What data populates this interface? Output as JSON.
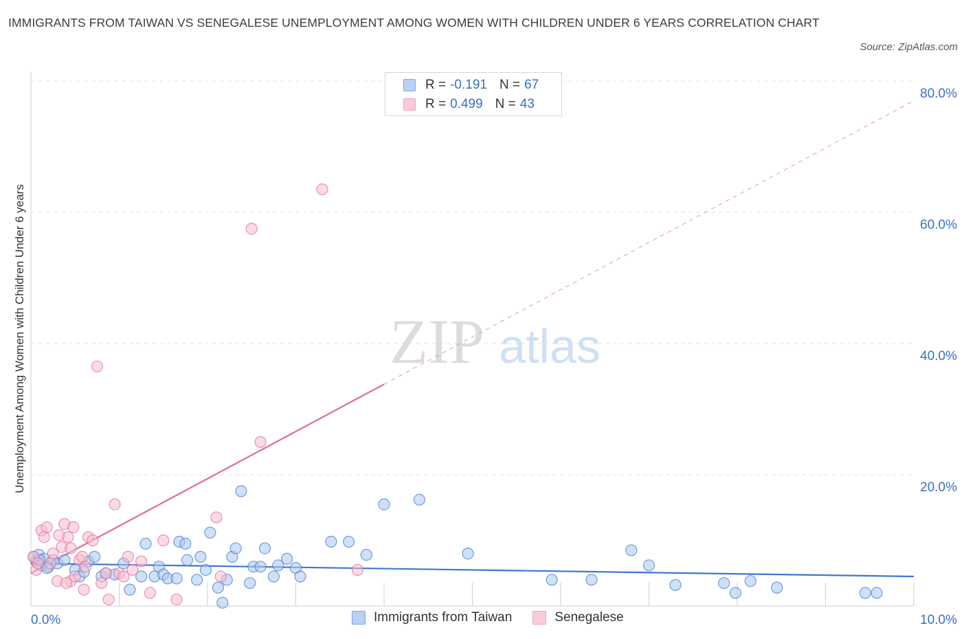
{
  "title": "IMMIGRANTS FROM TAIWAN VS SENEGALESE UNEMPLOYMENT AMONG WOMEN WITH CHILDREN UNDER 6 YEARS CORRELATION CHART",
  "source": "Source: ZipAtlas.com",
  "watermark": {
    "zip": "ZIP",
    "atlas": "atlas"
  },
  "legend_top": [
    {
      "r_label": "R =",
      "r_value": "-0.191",
      "n_label": "N =",
      "n_value": "67",
      "color": "#7aa7e8",
      "fill": "#b9d1f5"
    },
    {
      "r_label": "R =",
      "r_value": "0.499",
      "n_label": "N =",
      "n_value": "43",
      "color": "#f0a0b8",
      "fill": "#f9cbd8"
    }
  ],
  "chart_data": {
    "type": "scatter",
    "title": "IMMIGRANTS FROM TAIWAN VS SENEGALESE UNEMPLOYMENT AMONG WOMEN WITH CHILDREN UNDER 6 YEARS CORRELATION CHART",
    "xlabel": "",
    "ylabel": "Unemployment Among Women with Children Under 6 years",
    "xlim": [
      0,
      10
    ],
    "ylim": [
      0,
      80
    ],
    "x_tick_labels": [
      "0.0%",
      "10.0%"
    ],
    "y_tick_labels": [
      "20.0%",
      "40.0%",
      "60.0%",
      "80.0%"
    ],
    "y_ticks": [
      20,
      40,
      60,
      80
    ],
    "series": [
      {
        "name": "Immigrants from Taiwan",
        "color": "#3b78d0",
        "fill": "#a9c6f0",
        "trend": {
          "x0": 0,
          "y0": 6.5,
          "x1": 10,
          "y1": 4.5,
          "dashed_from": null
        },
        "points": [
          [
            0.03,
            7.5
          ],
          [
            0.06,
            6.8
          ],
          [
            0.09,
            7.8
          ],
          [
            0.12,
            6.2
          ],
          [
            0.15,
            7.2
          ],
          [
            0.2,
            6.0
          ],
          [
            0.25,
            7.0
          ],
          [
            0.3,
            6.5
          ],
          [
            0.38,
            7.0
          ],
          [
            0.5,
            5.5
          ],
          [
            0.55,
            4.5
          ],
          [
            0.6,
            5.2
          ],
          [
            0.65,
            6.8
          ],
          [
            0.72,
            7.5
          ],
          [
            0.8,
            4.5
          ],
          [
            0.85,
            5.0
          ],
          [
            0.95,
            4.8
          ],
          [
            1.05,
            6.5
          ],
          [
            1.12,
            2.5
          ],
          [
            1.25,
            4.5
          ],
          [
            1.3,
            9.5
          ],
          [
            1.4,
            4.5
          ],
          [
            1.45,
            6.0
          ],
          [
            1.5,
            4.8
          ],
          [
            1.55,
            4.2
          ],
          [
            1.65,
            4.2
          ],
          [
            1.68,
            9.8
          ],
          [
            1.75,
            9.5
          ],
          [
            1.77,
            7.0
          ],
          [
            1.88,
            4.0
          ],
          [
            1.92,
            7.5
          ],
          [
            1.98,
            5.5
          ],
          [
            2.03,
            11.2
          ],
          [
            2.12,
            2.8
          ],
          [
            2.17,
            0.5
          ],
          [
            2.22,
            4.0
          ],
          [
            2.28,
            7.5
          ],
          [
            2.32,
            8.8
          ],
          [
            2.38,
            17.5
          ],
          [
            2.48,
            3.5
          ],
          [
            2.52,
            6.0
          ],
          [
            2.6,
            6.0
          ],
          [
            2.65,
            8.8
          ],
          [
            2.75,
            4.5
          ],
          [
            2.8,
            6.2
          ],
          [
            2.9,
            7.2
          ],
          [
            3.0,
            5.8
          ],
          [
            3.05,
            4.5
          ],
          [
            3.4,
            9.8
          ],
          [
            3.6,
            9.8
          ],
          [
            3.8,
            7.8
          ],
          [
            4.0,
            15.5
          ],
          [
            4.4,
            16.2
          ],
          [
            4.95,
            8.0
          ],
          [
            5.9,
            4.0
          ],
          [
            6.35,
            4.0
          ],
          [
            6.8,
            8.5
          ],
          [
            7.0,
            6.2
          ],
          [
            7.3,
            3.2
          ],
          [
            7.85,
            3.5
          ],
          [
            7.98,
            2.0
          ],
          [
            8.15,
            3.8
          ],
          [
            8.45,
            2.8
          ],
          [
            9.45,
            2.0
          ],
          [
            9.58,
            2.0
          ],
          [
            0.1,
            7.0
          ],
          [
            0.18,
            5.8
          ]
        ]
      },
      {
        "name": "Senegalese",
        "color": "#e26a96",
        "fill": "#f6bdd0",
        "trend": {
          "x0": 0,
          "y0": 5.0,
          "x1": 10,
          "y1": 77.0,
          "dashed_from": 4.0
        },
        "points": [
          [
            0.03,
            7.5
          ],
          [
            0.06,
            5.5
          ],
          [
            0.08,
            6.5
          ],
          [
            0.12,
            11.5
          ],
          [
            0.15,
            10.5
          ],
          [
            0.18,
            12.0
          ],
          [
            0.22,
            6.5
          ],
          [
            0.25,
            8.0
          ],
          [
            0.3,
            3.8
          ],
          [
            0.32,
            10.8
          ],
          [
            0.35,
            9.0
          ],
          [
            0.38,
            12.5
          ],
          [
            0.42,
            10.5
          ],
          [
            0.45,
            3.8
          ],
          [
            0.45,
            8.8
          ],
          [
            0.48,
            12.0
          ],
          [
            0.5,
            4.5
          ],
          [
            0.55,
            7.0
          ],
          [
            0.58,
            7.5
          ],
          [
            0.6,
            2.5
          ],
          [
            0.62,
            6.0
          ],
          [
            0.65,
            10.5
          ],
          [
            0.7,
            10.0
          ],
          [
            0.75,
            36.5
          ],
          [
            0.8,
            3.5
          ],
          [
            0.85,
            5.0
          ],
          [
            0.88,
            1.0
          ],
          [
            0.95,
            15.5
          ],
          [
            1.0,
            5.0
          ],
          [
            1.05,
            4.5
          ],
          [
            1.1,
            7.5
          ],
          [
            1.15,
            5.5
          ],
          [
            1.25,
            6.8
          ],
          [
            1.35,
            2.0
          ],
          [
            1.5,
            10.0
          ],
          [
            1.65,
            1.0
          ],
          [
            2.1,
            13.5
          ],
          [
            2.15,
            4.5
          ],
          [
            2.5,
            57.5
          ],
          [
            2.6,
            25.0
          ],
          [
            3.3,
            63.5
          ],
          [
            3.7,
            5.5
          ],
          [
            0.4,
            3.5
          ]
        ]
      }
    ]
  }
}
